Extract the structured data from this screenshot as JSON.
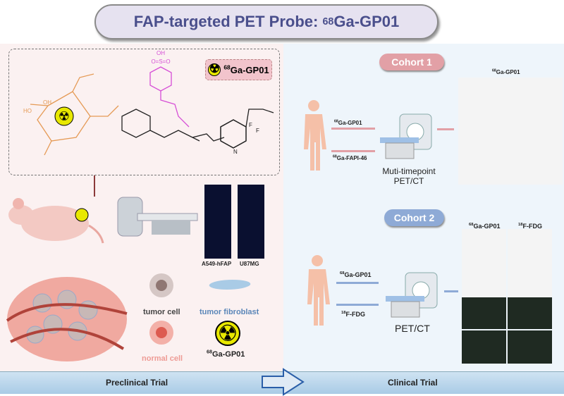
{
  "title": {
    "isotope": "68",
    "prefix": "FAP-targeted PET Probe: ",
    "name": "Ga-GP01"
  },
  "preclinical": {
    "probe_badge": {
      "isotope": "68",
      "name": "Ga-GP01"
    },
    "structure_labels": [
      "OH",
      "O=S=O",
      "OH",
      "O",
      "N",
      "N",
      "HO",
      "O",
      "F",
      "F",
      "N",
      "N"
    ],
    "mouse_scan_labels": [
      "A549-hFAP",
      "U87MG"
    ],
    "legend": {
      "tumor_cell": "tumor cell",
      "tumor_fibroblast": "tumor fibroblast",
      "normal_cell": "normal cell",
      "probe_isotope": "68",
      "probe_name": "Ga-GP01"
    }
  },
  "cohort1": {
    "label": "Cohort 1",
    "color": "#e2a0a6",
    "tracer1_iso": "68",
    "tracer1": "Ga-GP01",
    "tracer2_iso": "68",
    "tracer2": "Ga-FAPI-46",
    "scanner": "Muti-timepoint PET/CT",
    "images_iso": "68",
    "images_title": "Ga-GP01"
  },
  "cohort2": {
    "label": "Cohort 2",
    "color": "#8eaad6",
    "tracer1_iso": "68",
    "tracer1": "Ga-GP01",
    "tracer2_iso": "18",
    "tracer2": "F-FDG",
    "scanner": "PET/CT",
    "col1_iso": "68",
    "col1": "Ga-GP01",
    "col2_iso": "18",
    "col2": "F-FDG"
  },
  "bottom_bar": {
    "left": "Preclinical Trial",
    "right": "Clinical Trial"
  }
}
